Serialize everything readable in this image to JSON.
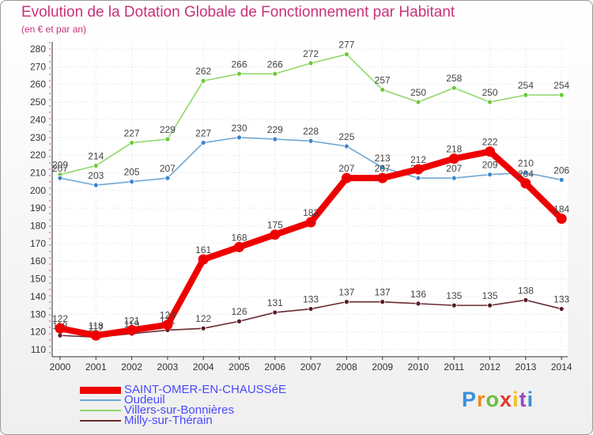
{
  "header": {
    "title": "Evolution de la Dotation Globale de Fonctionnement par Habitant",
    "subtitle": "(en € et par an)"
  },
  "logo": {
    "text": "Proxiti",
    "colors": [
      "#3a8fd8",
      "#f08a1a",
      "#6cbf3a",
      "#e23a2a",
      "#f0c020",
      "#9a4ac0",
      "#3a8fd8"
    ]
  },
  "chart_data": {
    "type": "line",
    "x": [
      "2000",
      "2001",
      "2002",
      "2003",
      "2004",
      "2005",
      "2006",
      "2007",
      "2008",
      "2009",
      "2010",
      "2011",
      "2012",
      "2013",
      "2014"
    ],
    "ylim": [
      110,
      280
    ],
    "yticks": [
      "110",
      "120",
      "130",
      "140",
      "150",
      "160",
      "170",
      "180",
      "190",
      "200",
      "210",
      "220",
      "230",
      "240",
      "250",
      "260",
      "270",
      "280"
    ],
    "grid": true,
    "legend_position": "bottom-left",
    "series": [
      {
        "name": "Villers-sur-Bonnières",
        "color": "#8ed86a",
        "marker": "#6cc93a",
        "values": [
          209,
          214,
          227,
          229,
          262,
          266,
          266,
          272,
          277,
          257,
          250,
          258,
          250,
          254,
          254
        ],
        "labels": [
          "209",
          "214",
          "227",
          "229",
          "262",
          "266",
          "266",
          "272",
          "277",
          "257",
          "250",
          "258",
          "250",
          "254",
          "254"
        ]
      },
      {
        "name": "Oudeuil",
        "color": "#6fa7d4",
        "marker": "#3a86d0",
        "values": [
          207,
          203,
          205,
          207,
          227,
          230,
          229,
          228,
          225,
          213,
          207,
          207,
          209,
          210,
          206
        ],
        "labels": [
          "207",
          "203",
          "205",
          "207",
          "227",
          "230",
          "229",
          "228",
          "225",
          "213",
          "207",
          "207",
          "209",
          "210",
          "206"
        ]
      },
      {
        "name": "Milly-sur-Thérain",
        "color": "#6a2a32",
        "marker": "#5a1a22",
        "values": [
          118,
          117,
          119,
          121,
          122,
          126,
          131,
          133,
          137,
          137,
          136,
          135,
          135,
          138,
          133
        ],
        "labels": [
          "118",
          "117",
          "119",
          "121",
          "122",
          "126",
          "131",
          "133",
          "137",
          "137",
          "136",
          "135",
          "135",
          "138",
          "133"
        ]
      },
      {
        "name": "SAINT-OMER-EN-CHAUSSéE",
        "color": "#ee0000",
        "marker": "#ee0000",
        "values": [
          122,
          118,
          121,
          124,
          161,
          168,
          175,
          182,
          207,
          207,
          212,
          218,
          222,
          204,
          184
        ],
        "labels": [
          "122",
          "118",
          "121",
          "124",
          "161",
          "168",
          "175",
          "182",
          "207",
          "207",
          "212",
          "218",
          "222",
          "204",
          "184"
        ]
      }
    ],
    "legend": [
      {
        "name": "SAINT-OMER-EN-CHAUSSéE",
        "color": "#ee0000",
        "thickness": 9
      },
      {
        "name": "Oudeuil",
        "color": "#6fa7d4",
        "thickness": 2
      },
      {
        "name": "Villers-sur-Bonnières",
        "color": "#8ed86a",
        "thickness": 2
      },
      {
        "name": "Milly-sur-Thérain",
        "color": "#6a2a32",
        "thickness": 2
      }
    ]
  }
}
